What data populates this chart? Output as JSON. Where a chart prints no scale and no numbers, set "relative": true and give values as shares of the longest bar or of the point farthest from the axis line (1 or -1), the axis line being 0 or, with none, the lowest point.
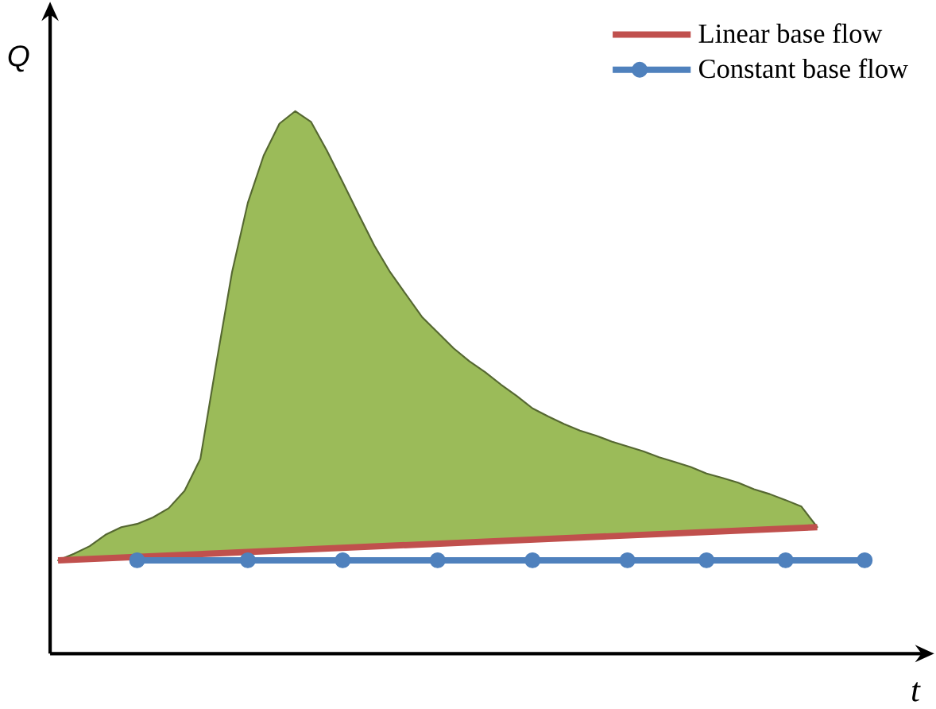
{
  "chart_data": {
    "type": "line",
    "relative": true,
    "xlabel": "t",
    "ylabel": "Q",
    "legend": "top right",
    "categories": [
      null,
      null,
      null,
      null,
      null,
      null,
      null,
      null,
      null,
      null,
      null,
      null,
      null,
      null,
      null,
      null,
      null,
      null,
      null,
      null,
      null,
      null,
      null,
      null,
      null,
      null,
      null,
      null,
      null,
      null,
      null,
      null,
      null,
      null,
      null,
      null,
      null,
      null,
      null,
      null,
      null,
      null,
      null,
      null,
      null,
      null,
      null,
      null,
      null,
      null,
      null,
      null,
      null,
      null
    ],
    "series": [
      {
        "type": "area",
        "color": "#9bbb59",
        "values": [
          0.172,
          0.184,
          0.198,
          0.219,
          0.233,
          0.239,
          0.251,
          0.268,
          0.3,
          0.359,
          0.534,
          0.703,
          0.831,
          0.918,
          0.977,
          1,
          0.98,
          0.927,
          0.869,
          0.81,
          0.752,
          0.703,
          0.662,
          0.621,
          0.592,
          0.563,
          0.539,
          0.519,
          0.496,
          0.475,
          0.452,
          0.437,
          0.423,
          0.411,
          0.402,
          0.391,
          0.382,
          0.373,
          0.362,
          0.353,
          0.344,
          0.332,
          0.324,
          0.315,
          0.303,
          0.294,
          0.283,
          0.271,
          0.233,
          null,
          null,
          null,
          null,
          null
        ]
      },
      {
        "name": "Linear base flow",
        "color": "#c0504d",
        "values": [
          0.172,
          null,
          null,
          null,
          null,
          null,
          null,
          null,
          null,
          null,
          null,
          null,
          null,
          null,
          null,
          null,
          null,
          null,
          null,
          null,
          null,
          null,
          null,
          null,
          null,
          null,
          null,
          null,
          null,
          null,
          null,
          null,
          null,
          null,
          null,
          null,
          null,
          null,
          null,
          null,
          null,
          null,
          null,
          null,
          null,
          null,
          null,
          null,
          0.233,
          null,
          null,
          null,
          null,
          null
        ]
      },
      {
        "name": "Constant base flow",
        "color": "#4f81bd",
        "marker": "circle",
        "values": [
          null,
          null,
          null,
          null,
          null,
          0.172,
          null,
          null,
          null,
          null,
          null,
          null,
          0.172,
          null,
          null,
          null,
          null,
          null,
          0.172,
          null,
          null,
          null,
          null,
          null,
          0.172,
          null,
          null,
          null,
          null,
          null,
          0.172,
          null,
          null,
          null,
          null,
          null,
          0.172,
          null,
          null,
          null,
          null,
          0.172,
          null,
          null,
          null,
          null,
          0.172,
          null,
          null,
          null,
          null,
          0.172,
          null,
          null
        ]
      }
    ]
  }
}
